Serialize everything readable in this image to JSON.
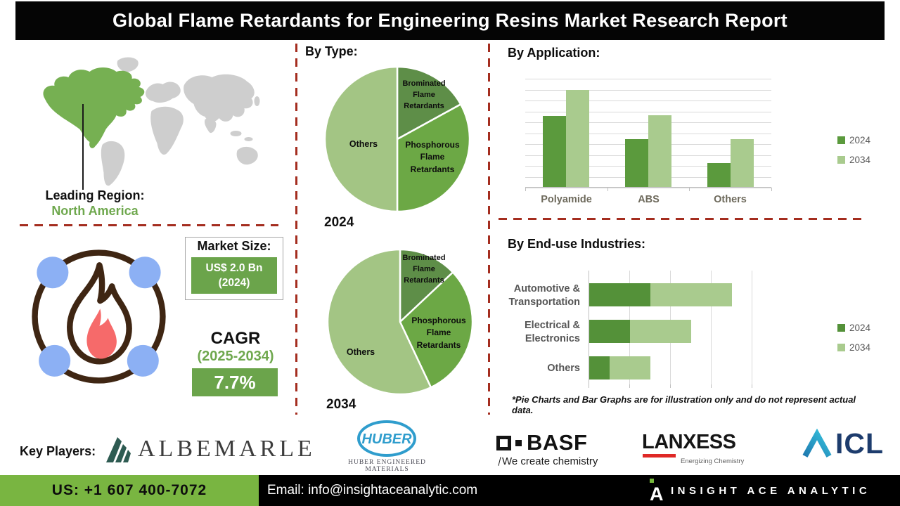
{
  "title": "Global Flame Retardants for Engineering Resins Market Research Report",
  "colors": {
    "accent_green": "#6ba44b",
    "footer_green": "#79b541",
    "dash_red": "#a42d1f",
    "map_highlight_green": "#76b052",
    "map_gray": "#cecece",
    "series_2024_green": "#5b9a3d",
    "series_2034_green": "#a9cb8e"
  },
  "leading_region": {
    "label": "Leading Region:",
    "value": "North America"
  },
  "market_size": {
    "label": "Market Size:",
    "value": "US$ 2.0 Bn",
    "year": "(2024)"
  },
  "cagr": {
    "label": "CAGR",
    "period": "(2025-2034)",
    "value": "7.7%"
  },
  "sections": {
    "by_type_heading": "By Type:",
    "by_application_heading": "By Application:",
    "by_end_use_heading": "By End-use Industries:"
  },
  "disclaimer": "*Pie Charts and Bar Graphs are for illustration only and do not represent actual data.",
  "key_players": {
    "label": "Key Players:",
    "albemarle": "ALBEMARLE",
    "huber": "HUBER",
    "huber_sub": "HUBER ENGINEERED MATERIALS",
    "basf": "BASF",
    "basf_tagline": "We create chemistry",
    "lanxess": "LANXESS",
    "lanxess_sub": "Energizing Chemistry",
    "icl": "ICL"
  },
  "footer": {
    "phone": "US: +1 607 400-7072",
    "email": "Email: info@insightaceanalytic.com",
    "brand": "INSIGHT ACE ANALYTIC"
  },
  "chart_data": [
    {
      "id": "pie-2024",
      "type": "pie",
      "title": "2024",
      "labels": [
        "Brominated Flame Retardants",
        "Phosphorous Flame Retardants",
        "Others"
      ],
      "values": [
        17,
        33,
        50
      ],
      "colors": [
        "#5e8e48",
        "#6ca845",
        "#a3c584"
      ],
      "start_angle": "top",
      "direction": "clockwise"
    },
    {
      "id": "pie-2034",
      "type": "pie",
      "title": "2034",
      "labels": [
        "Brominated Flame Retardants",
        "Phosphorous Flame Retardants",
        "Others"
      ],
      "values": [
        13,
        30,
        57
      ],
      "colors": [
        "#5e8e48",
        "#6ca845",
        "#a3c584"
      ],
      "start_angle": "top",
      "direction": "clockwise"
    },
    {
      "type": "bar",
      "title": "By Application:",
      "categories": [
        "Polyamide",
        "ABS",
        "Others"
      ],
      "series": [
        {
          "name": "2024",
          "values": [
            6.5,
            4.4,
            2.2
          ],
          "color": "#5b9a3d"
        },
        {
          "name": "2034",
          "values": [
            8.9,
            6.6,
            4.4
          ],
          "color": "#a9cb8e"
        }
      ],
      "ylim": [
        0,
        10
      ],
      "grid": true,
      "legend_position": "right"
    },
    {
      "type": "bar",
      "subtype": "horizontal-stacked",
      "title": "By End-use Industries:",
      "categories": [
        "Automotive & Transportation",
        "Electrical & Electronics",
        "Others"
      ],
      "series": [
        {
          "name": "2024",
          "values": [
            1.5,
            1.0,
            0.5
          ],
          "color": "#549139"
        },
        {
          "name": "2034",
          "values": [
            2.0,
            1.5,
            1.0
          ],
          "color": "#a9cb8e"
        }
      ],
      "xlim": [
        0,
        5
      ],
      "grid": true,
      "legend_position": "right"
    }
  ]
}
